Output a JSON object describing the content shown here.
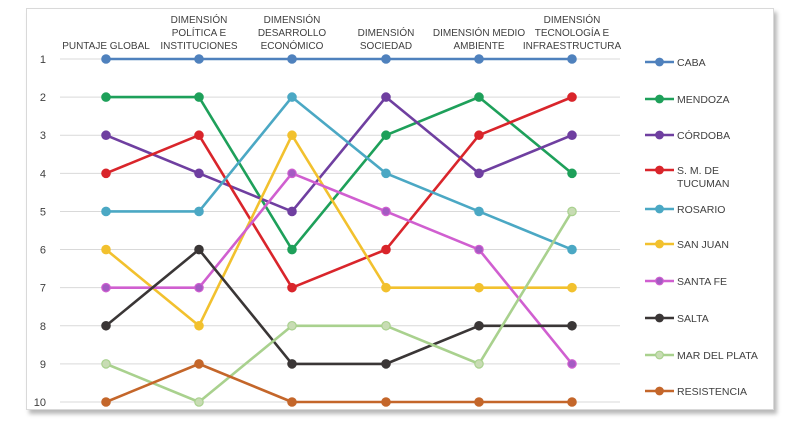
{
  "chart_data": {
    "type": "line",
    "title": "",
    "xlabel": "",
    "ylabel": "",
    "y_inverted": true,
    "ylim": [
      1,
      10
    ],
    "grid": true,
    "legend_position": "right",
    "categories": [
      [
        "PUNTAJE GLOBAL"
      ],
      [
        "DIMENSIÓN",
        "POLÍTICA E",
        "INSTITUCIONES"
      ],
      [
        "DIMENSIÓN",
        "DESARROLLO",
        "ECONÓMICO"
      ],
      [
        "DIMENSIÓN",
        "SOCIEDAD"
      ],
      [
        "DIMENSIÓN MEDIO",
        "AMBIENTE"
      ],
      [
        "DIMENSIÓN",
        "TECNOLOGÍA E",
        "INFRAESTRUCTURA"
      ]
    ],
    "y_ticks": [
      "1",
      "2",
      "3",
      "4",
      "5",
      "6",
      "7",
      "8",
      "9",
      "10"
    ],
    "series": [
      {
        "name": [
          "CABA"
        ],
        "color": "#4f81bd",
        "marker_fill": "#4f81bd",
        "values": [
          1,
          1,
          1,
          1,
          1,
          1
        ]
      },
      {
        "name": [
          "MENDOZA"
        ],
        "color": "#1ea05a",
        "marker_fill": "#1ea05a",
        "values": [
          2,
          2,
          6,
          3,
          2,
          4
        ]
      },
      {
        "name": [
          "CÓRDOBA"
        ],
        "color": "#6f3fa0",
        "marker_fill": "#6f3fa0",
        "values": [
          3,
          4,
          5,
          2,
          4,
          3
        ]
      },
      {
        "name": [
          "S. M.  DE",
          "TUCUMAN"
        ],
        "color": "#d9252b",
        "marker_fill": "#d9252b",
        "values": [
          4,
          3,
          7,
          6,
          3,
          2
        ]
      },
      {
        "name": [
          "ROSARIO"
        ],
        "color": "#4ba8c4",
        "marker_fill": "#4ba8c4",
        "values": [
          5,
          5,
          2,
          4,
          5,
          6
        ]
      },
      {
        "name": [
          "SAN JUAN"
        ],
        "color": "#f2c12e",
        "marker_fill": "#f2c12e",
        "values": [
          6,
          8,
          3,
          7,
          7,
          7
        ]
      },
      {
        "name": [
          "SANTA FE"
        ],
        "color": "#d05fd0",
        "marker_fill": "#a35bc2",
        "values": [
          7,
          7,
          4,
          5,
          6,
          9
        ]
      },
      {
        "name": [
          "SALTA"
        ],
        "color": "#3a3636",
        "marker_fill": "#3a3636",
        "values": [
          8,
          6,
          9,
          9,
          8,
          8
        ]
      },
      {
        "name": [
          "MAR DEL PLATA"
        ],
        "color": "#a9d18e",
        "marker_fill": "#c8dcb4",
        "values": [
          9,
          10,
          8,
          8,
          9,
          5
        ]
      },
      {
        "name": [
          "RESISTENCIA"
        ],
        "color": "#c4662a",
        "marker_fill": "#c4662a",
        "values": [
          10,
          9,
          10,
          10,
          10,
          10
        ]
      }
    ]
  }
}
